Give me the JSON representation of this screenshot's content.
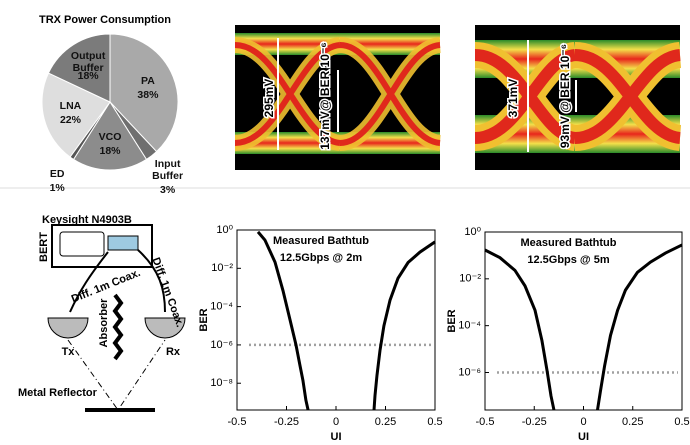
{
  "chart_data": [
    {
      "type": "pie",
      "title": "TRX Power Consumption",
      "categories": [
        "PA",
        "Input Buffer",
        "VCO",
        "ED",
        "LNA",
        "Output Buffer"
      ],
      "values": [
        38,
        3,
        18,
        1,
        22,
        18
      ],
      "value_labels": [
        "38%",
        "3%",
        "18%",
        "1%",
        "22%",
        "18%"
      ],
      "colors": [
        "#a9a9a9",
        "#6f6f6f",
        "#8c8c8c",
        "#555555",
        "#dedede",
        "#7b7b7b"
      ]
    },
    {
      "type": "line",
      "annotation": [
        "Measured Bathtub",
        "12.5Gbps @ 2m"
      ],
      "xlabel": "UI",
      "ylabel": "BER",
      "yscale": "log",
      "xlim": [
        -0.5,
        0.5
      ],
      "ylim": [
        4e-10,
        1
      ],
      "xticks": [
        -0.5,
        -0.25,
        0,
        0.25,
        0.5
      ],
      "yticks": [
        {
          "value": 1,
          "label": "10⁰"
        },
        {
          "value": 0.01,
          "label": "10⁻²"
        },
        {
          "value": 0.0001,
          "label": "10⁻⁴"
        },
        {
          "value": 1e-06,
          "label": "10⁻⁶"
        },
        {
          "value": 1e-08,
          "label": "10⁻⁸"
        }
      ],
      "threshold": 1e-06,
      "threshold_color": "#a0a0a0",
      "series": [
        {
          "color": "#000000",
          "x": [
            -0.394,
            -0.359,
            -0.308,
            -0.268,
            -0.232,
            -0.202,
            -0.182,
            -0.167,
            -0.152,
            -0.141
          ],
          "values": [
            0.8,
            0.3,
            0.021,
            0.0007,
            2e-05,
            1e-06,
            8.5e-08,
            1.4e-08,
            1.3e-09,
            4e-10
          ]
        },
        {
          "color": "#000000",
          "x": [
            0.192,
            0.197,
            0.207,
            0.222,
            0.242,
            0.273,
            0.313,
            0.364,
            0.424,
            0.5
          ],
          "values": [
            4e-10,
            2.3e-09,
            2.6e-08,
            5e-07,
            1e-05,
            0.00022,
            0.003,
            0.02,
            0.07,
            0.24
          ]
        }
      ]
    },
    {
      "type": "line",
      "annotation": [
        "Measured Bathtub",
        "12.5Gbps @ 5m"
      ],
      "xlabel": "UI",
      "ylabel": "BER",
      "yscale": "log",
      "xlim": [
        -0.5,
        0.5
      ],
      "ylim": [
        2.5e-08,
        1
      ],
      "xticks": [
        -0.5,
        -0.25,
        0,
        0.25,
        0.5
      ],
      "yticks": [
        {
          "value": 1,
          "label": "10⁰"
        },
        {
          "value": 0.01,
          "label": "10⁻²"
        },
        {
          "value": 0.0001,
          "label": "10⁻⁴"
        },
        {
          "value": 1e-06,
          "label": "10⁻⁶"
        }
      ],
      "threshold": 1e-06,
      "threshold_color": "#a0a0a0",
      "series": [
        {
          "color": "#000000",
          "x": [
            -0.5,
            -0.424,
            -0.348,
            -0.297,
            -0.246,
            -0.211,
            -0.185,
            -0.165,
            -0.15
          ],
          "values": [
            0.17,
            0.08,
            0.023,
            0.005,
            0.00045,
            2.3e-05,
            1.2e-06,
            1e-07,
            2.5e-08
          ]
        },
        {
          "color": "#000000",
          "x": [
            0.071,
            0.086,
            0.107,
            0.137,
            0.173,
            0.213,
            0.274,
            0.34,
            0.416,
            0.5
          ],
          "values": [
            2.5e-08,
            1.6e-07,
            1.9e-06,
            3.8e-05,
            0.00045,
            0.0033,
            0.019,
            0.052,
            0.126,
            0.28
          ]
        }
      ]
    }
  ],
  "eye_diagrams": [
    {
      "swing": "295mV",
      "opening": "137mV@ BER 10⁻⁶"
    },
    {
      "swing": "371mV",
      "opening": "93mV @ BER 10⁻⁶"
    }
  ],
  "setup": {
    "instrument": "Keysight N4903B",
    "bert": "BERT",
    "cable_left": "Diff. 1m Coax.",
    "cable_right": "Diff. 1m Coax.",
    "absorber": "Absorber",
    "tx": "Tx",
    "rx": "Rx",
    "reflector": "Metal Reflector"
  }
}
